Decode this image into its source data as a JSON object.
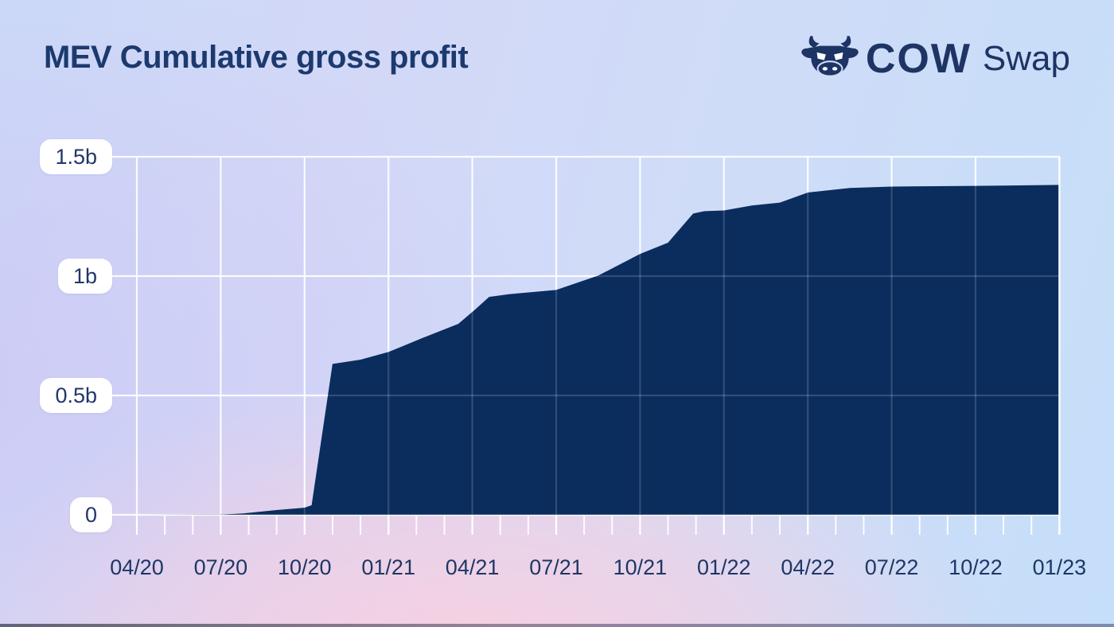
{
  "page": {
    "title": "MEV Cumulative gross profit"
  },
  "logo": {
    "icon": "cow-head-icon",
    "brand_bold": "COW",
    "brand_regular": "Swap"
  },
  "colors": {
    "title_text": "#1c3a6e",
    "axis_label_text": "#1e3766",
    "pill_background": "#ffffff",
    "area_fill": "#0a2d5e",
    "gridline": "#ffffff",
    "logo_navy": "#1d3464"
  },
  "chart_data": {
    "type": "area",
    "title": "MEV Cumulative gross profit",
    "unit": "billions (b) of USD, cumulative",
    "xlabel": "",
    "ylabel": "",
    "ylim": [
      0,
      1.5
    ],
    "grid": "on, white lines, quarterly vertical + 0.5b horizontal",
    "legend": "none",
    "x_tick_labels": [
      "04/20",
      "07/20",
      "10/20",
      "01/21",
      "04/21",
      "07/21",
      "10/21",
      "01/22",
      "04/22",
      "07/22",
      "10/22",
      "01/23"
    ],
    "y_tick_labels": [
      "0",
      "0.5b",
      "1b",
      "1.5b"
    ],
    "y_tick_values": [
      0,
      0.5,
      1,
      1.5
    ],
    "x_minor_ticks": "monthly",
    "values_at_ticks": [
      0,
      0,
      0.03,
      0.68,
      0.85,
      0.94,
      1.09,
      1.28,
      1.35,
      1.37,
      1.38,
      1.38
    ],
    "series": [
      {
        "name": "MEV cumulative gross profit",
        "x_unit": "months since 04/2020 (fractional for ramp edges)",
        "breakpoints": [
          [
            0,
            0
          ],
          [
            3,
            0.001
          ],
          [
            3.8,
            0.006
          ],
          [
            5,
            0.02
          ],
          [
            6,
            0.03
          ],
          [
            6.25,
            0.04
          ],
          [
            7,
            0.632
          ],
          [
            8,
            0.65
          ],
          [
            9,
            0.682
          ],
          [
            10.2,
            0.74
          ],
          [
            11.5,
            0.8
          ],
          [
            12.1,
            0.86
          ],
          [
            12.6,
            0.913
          ],
          [
            13.3,
            0.924
          ],
          [
            15,
            0.942
          ],
          [
            16.5,
            1.002
          ],
          [
            18,
            1.093
          ],
          [
            19,
            1.14
          ],
          [
            19.9,
            1.262
          ],
          [
            20.3,
            1.272
          ],
          [
            21,
            1.275
          ],
          [
            22,
            1.296
          ],
          [
            23,
            1.308
          ],
          [
            24,
            1.35
          ],
          [
            25.5,
            1.369
          ],
          [
            27,
            1.375
          ],
          [
            30,
            1.378
          ],
          [
            33,
            1.382
          ]
        ]
      }
    ]
  }
}
